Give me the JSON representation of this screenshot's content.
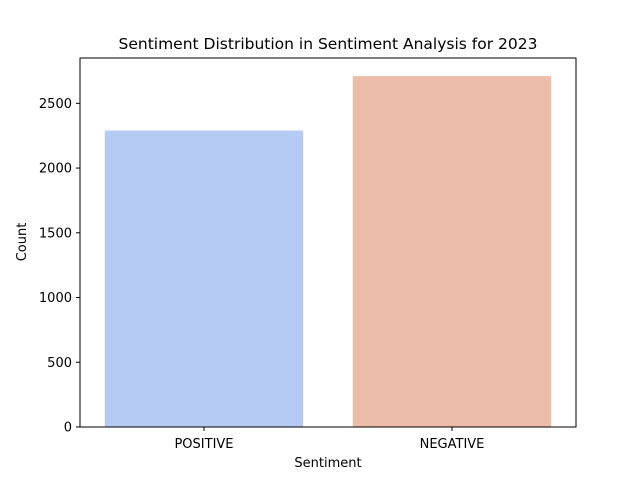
{
  "chart_data": {
    "type": "bar",
    "title": "Sentiment Distribution in Sentiment Analysis for 2023",
    "xlabel": "Sentiment",
    "ylabel": "Count",
    "categories": [
      "POSITIVE",
      "NEGATIVE"
    ],
    "values": [
      2290,
      2710
    ],
    "colors": [
      "#b5cbf4",
      "#ecbda8"
    ],
    "ylim": [
      0,
      2850
    ],
    "yticks": [
      0,
      500,
      1000,
      1500,
      2000,
      2500
    ],
    "grid": false,
    "legend": "none"
  }
}
